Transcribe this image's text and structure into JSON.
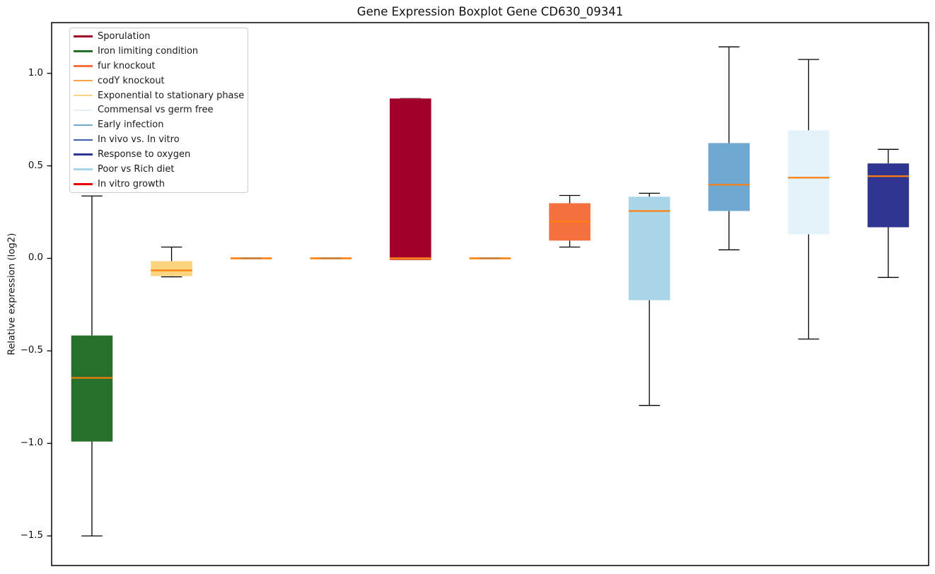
{
  "title": "Gene Expression Boxplot Gene CD630_09341",
  "y_axis": {
    "label": "Relative expression (log2)",
    "tick_labels": [
      "1.0",
      "0.5",
      "0.0",
      "−0.5",
      "−1.0",
      "−1.5"
    ],
    "tick_values": [
      1.0,
      0.5,
      0.0,
      -0.5,
      -1.0,
      -1.5
    ],
    "ylim": [
      -1.66,
      1.274
    ]
  },
  "x_axis": {
    "xlim": [
      0.494,
      11.507
    ],
    "tick_labels": []
  },
  "style": {
    "median_color": "#FF7F0E",
    "whisker_color": "#000000",
    "spine_color": "#000000",
    "flat_overlay_color": "#C5823F"
  },
  "legend": [
    {
      "label": "Sporulation",
      "color": "#A2002A"
    },
    {
      "label": "Iron limiting condition",
      "color": "#27702B"
    },
    {
      "label": "fur knockout",
      "color": "#F4703F"
    },
    {
      "label": "codY knockout",
      "color": "#F9A14B"
    },
    {
      "label": "Exponential to stationary phase",
      "color": "#FCD480"
    },
    {
      "label": "Commensal vs germ free",
      "color": "#E3F3F9"
    },
    {
      "label": "Early infection",
      "color": "#6FA8D0"
    },
    {
      "label": "In vivo vs. In vitro",
      "color": "#3A5FA8"
    },
    {
      "label": "Response to oxygen",
      "color": "#2F3590"
    },
    {
      "label": "Poor vs Rich diet",
      "color": "#A9D5E8"
    },
    {
      "label": "In vitro growth",
      "color": "#E60000"
    }
  ],
  "chart_data": {
    "type": "boxplot",
    "title": "Gene Expression Boxplot Gene CD630_09341",
    "ylabel": "Relative expression (log2)",
    "ylim": [
      -1.66,
      1.274
    ],
    "grid": false,
    "legend_position": "upper left",
    "series": [
      {
        "name": "Iron limiting condition",
        "color": "#27702B",
        "position": 1,
        "whislo": -1.5,
        "q1": -0.99,
        "med": -0.646,
        "q3": -0.417,
        "whishi": 0.337
      },
      {
        "name": "Exponential to stationary phase",
        "color": "#FCD480",
        "position": 2,
        "whislo": -0.1,
        "q1": -0.096,
        "med": -0.065,
        "q3": -0.015,
        "whishi": 0.061
      },
      {
        "name": "codY knockout",
        "color": "#F9A14B",
        "position": 3,
        "whislo": -0.004,
        "q1": -0.003,
        "med": 0.0,
        "q3": 0.002,
        "whishi": 0.003
      },
      {
        "name": "In vivo vs. In vitro",
        "color": "#3A5FA8",
        "position": 4,
        "whislo": -0.004,
        "q1": -0.003,
        "med": 0.0,
        "q3": 0.002,
        "whishi": 0.003
      },
      {
        "name": "Sporulation",
        "color": "#A2002A",
        "position": 5,
        "whislo": -0.002,
        "q1": -0.002,
        "med": 0.001,
        "q3": 0.864,
        "whishi": 0.8645,
        "cap_upper_color": "#8a7f7f",
        "underline_color": "#CC4A22"
      },
      {
        "name": "In vitro growth",
        "color": "#E60000",
        "position": 6,
        "whislo": -0.004,
        "q1": -0.003,
        "med": 0.0,
        "q3": 0.002,
        "whishi": 0.003
      },
      {
        "name": "fur knockout",
        "color": "#F4703F",
        "position": 7,
        "whislo": 0.061,
        "q1": 0.096,
        "med": 0.198,
        "q3": 0.298,
        "whishi": 0.34
      },
      {
        "name": "Poor vs Rich diet",
        "color": "#A9D5E8",
        "position": 8,
        "whislo": -0.795,
        "q1": -0.226,
        "med": 0.256,
        "q3": 0.333,
        "whishi": 0.352
      },
      {
        "name": "Early infection",
        "color": "#6FA8D0",
        "position": 9,
        "whislo": 0.046,
        "q1": 0.256,
        "med": 0.398,
        "q3": 0.623,
        "whishi": 1.143
      },
      {
        "name": "Commensal vs germ free",
        "color": "#E3F3F9",
        "position": 10,
        "whislo": -0.436,
        "q1": 0.13,
        "med": 0.436,
        "q3": 0.692,
        "whishi": 1.075
      },
      {
        "name": "Response to oxygen",
        "color": "#2F3590",
        "position": 11,
        "whislo": -0.103,
        "q1": 0.168,
        "med": 0.444,
        "q3": 0.513,
        "whishi": 0.589
      }
    ]
  }
}
